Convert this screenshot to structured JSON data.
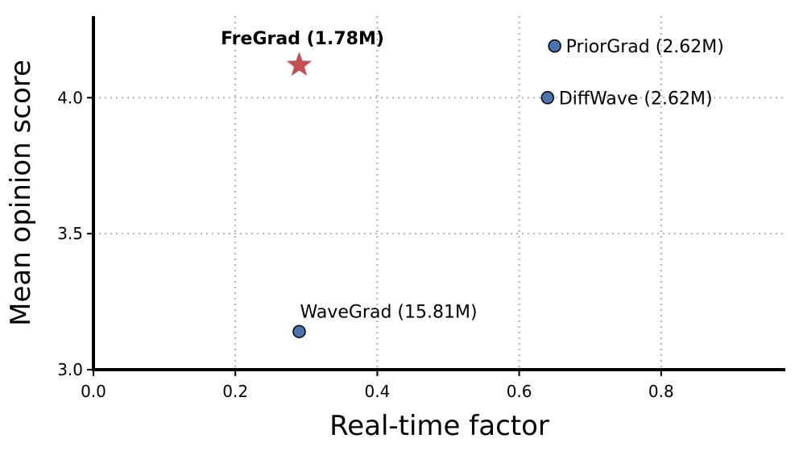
{
  "chart_data": {
    "type": "scatter",
    "xlabel": "Real-time factor",
    "ylabel": "Mean opinion score",
    "xlim": [
      0.0,
      0.975
    ],
    "ylim": [
      3.0,
      4.3
    ],
    "xticks": [
      0.0,
      0.2,
      0.4,
      0.6,
      0.8
    ],
    "xtick_labels": [
      "0.0",
      "0.2",
      "0.4",
      "0.6",
      "0.8"
    ],
    "yticks": [
      3.0,
      3.5,
      4.0
    ],
    "ytick_labels": [
      "3.0",
      "3.5",
      "4.0"
    ],
    "grid": true,
    "points": [
      {
        "name": "FreGrad (1.78M)",
        "x": 0.29,
        "y": 4.12,
        "marker": "star",
        "color": "#c44e52",
        "bold": true,
        "label_pos": "above"
      },
      {
        "name": "PriorGrad (2.62M)",
        "x": 0.65,
        "y": 4.19,
        "marker": "circle",
        "color": "#4c72b0",
        "bold": false,
        "label_pos": "right"
      },
      {
        "name": "DiffWave (2.62M)",
        "x": 0.64,
        "y": 4.0,
        "marker": "circle",
        "color": "#4c72b0",
        "bold": false,
        "label_pos": "right"
      },
      {
        "name": "WaveGrad (15.81M)",
        "x": 0.29,
        "y": 3.14,
        "marker": "circle",
        "color": "#4c72b0",
        "bold": false,
        "label_pos": "above-right"
      }
    ]
  }
}
